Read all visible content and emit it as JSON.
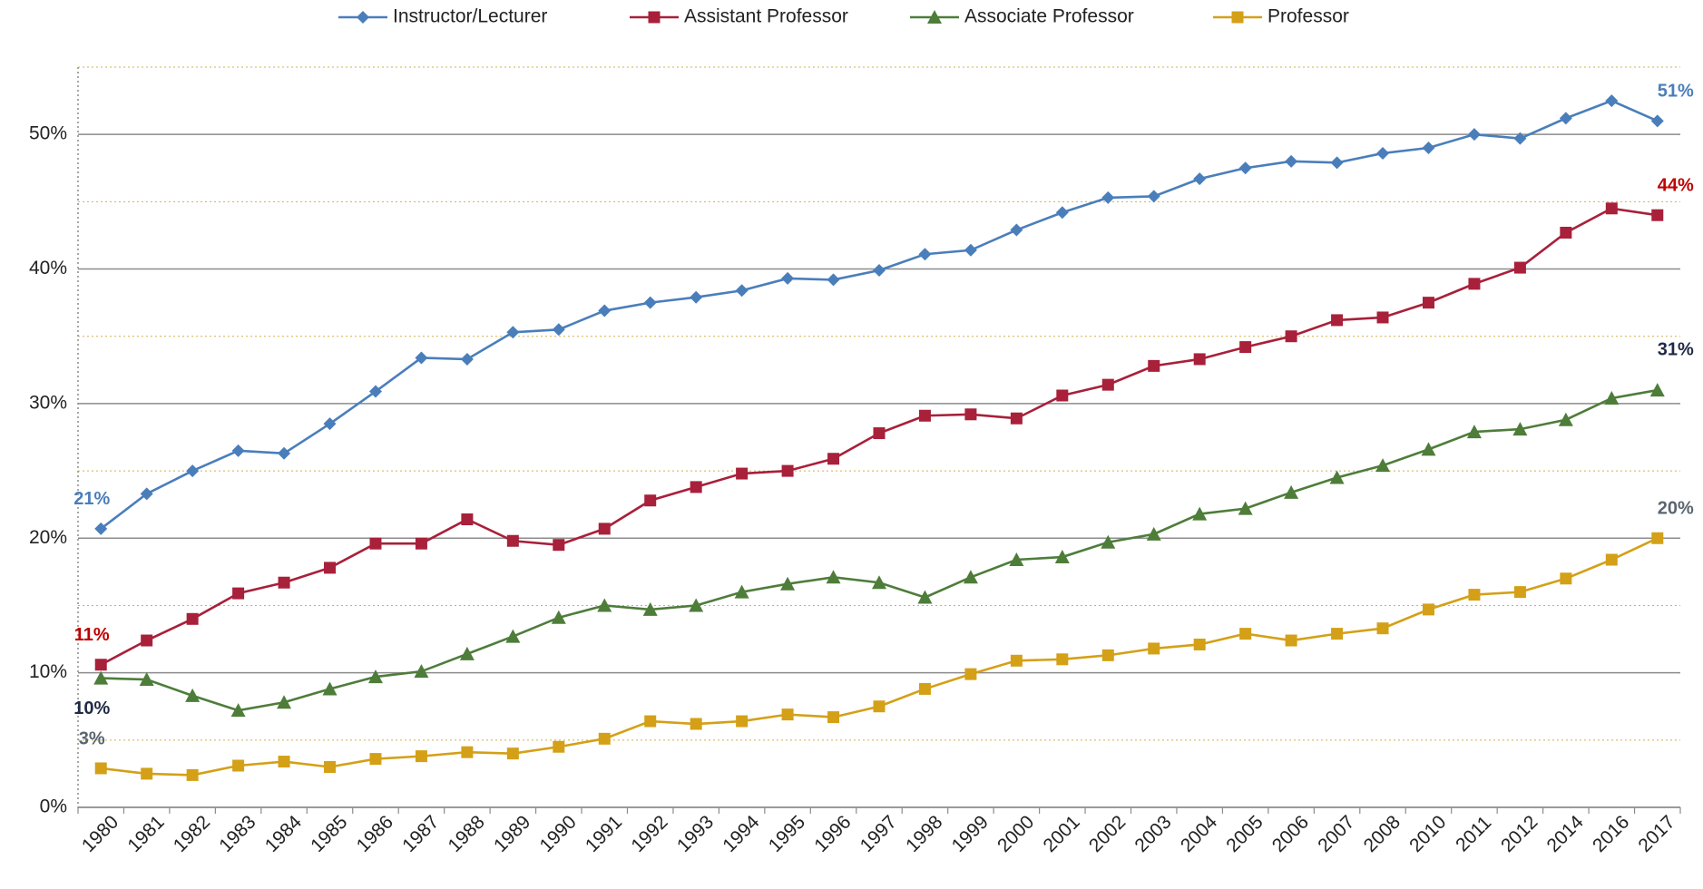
{
  "chart_data": {
    "type": "line",
    "categories": [
      "1980",
      "1981",
      "1982",
      "1983",
      "1984",
      "1985",
      "1986",
      "1987",
      "1988",
      "1989",
      "1990",
      "1991",
      "1992",
      "1993",
      "1994",
      "1995",
      "1996",
      "1997",
      "1998",
      "1999",
      "2000",
      "2001",
      "2002",
      "2003",
      "2004",
      "2005",
      "2006",
      "2007",
      "2008",
      "2010",
      "2011",
      "2012",
      "2014",
      "2016",
      "2017"
    ],
    "series": [
      {
        "name": "Instructor/Lecturer",
        "color": "#4a7ebb",
        "marker": "diamond",
        "label_color": "#4a7ebb",
        "values": [
          20.7,
          23.3,
          25.0,
          26.5,
          26.3,
          28.5,
          30.9,
          33.4,
          33.3,
          35.3,
          35.5,
          36.9,
          37.5,
          37.9,
          38.4,
          39.3,
          39.2,
          39.9,
          41.1,
          41.4,
          42.9,
          44.2,
          45.3,
          45.4,
          46.7,
          47.5,
          48.0,
          47.9,
          48.6,
          49.0,
          50.0,
          49.7,
          51.2,
          52.5,
          51.0
        ],
        "value_labels": [
          "21%",
          null,
          null,
          null,
          null,
          null,
          null,
          null,
          null,
          null,
          null,
          null,
          null,
          null,
          null,
          null,
          null,
          null,
          null,
          null,
          null,
          null,
          null,
          null,
          null,
          null,
          null,
          null,
          null,
          null,
          null,
          null,
          null,
          null,
          "51%"
        ]
      },
      {
        "name": "Assistant Professor",
        "color": "#a8203a",
        "marker": "square",
        "label_color": "#c00000",
        "values": [
          10.6,
          12.4,
          14.0,
          15.9,
          16.7,
          17.8,
          19.6,
          19.6,
          21.4,
          19.8,
          19.5,
          20.7,
          22.8,
          23.8,
          24.8,
          25.0,
          25.9,
          27.8,
          29.1,
          29.2,
          28.9,
          30.6,
          31.4,
          32.8,
          33.3,
          34.2,
          35.0,
          36.2,
          36.4,
          37.5,
          38.9,
          40.1,
          42.7,
          44.5,
          44.0
        ],
        "value_labels": [
          "11%",
          null,
          null,
          null,
          null,
          null,
          null,
          null,
          null,
          null,
          null,
          null,
          null,
          null,
          null,
          null,
          null,
          null,
          null,
          null,
          null,
          null,
          null,
          null,
          null,
          null,
          null,
          null,
          null,
          null,
          null,
          null,
          null,
          null,
          "44%"
        ]
      },
      {
        "name": "Associate Professor",
        "color": "#4e7d3a",
        "marker": "triangle",
        "label_color": "#1f2a44",
        "values": [
          9.6,
          9.5,
          8.3,
          7.2,
          7.8,
          8.8,
          9.7,
          10.1,
          11.4,
          12.7,
          14.1,
          15.0,
          14.7,
          15.0,
          16.0,
          16.6,
          17.1,
          16.7,
          15.6,
          17.1,
          18.4,
          18.6,
          19.7,
          20.3,
          21.8,
          22.2,
          23.4,
          24.5,
          25.4,
          26.6,
          27.9,
          28.1,
          28.8,
          30.4,
          31.0
        ],
        "value_labels": [
          "10%",
          null,
          null,
          null,
          null,
          null,
          null,
          null,
          null,
          null,
          null,
          null,
          null,
          null,
          null,
          null,
          null,
          null,
          null,
          null,
          null,
          null,
          null,
          null,
          null,
          null,
          null,
          null,
          null,
          null,
          null,
          null,
          null,
          null,
          "31%"
        ]
      },
      {
        "name": "Professor",
        "color": "#d4a017",
        "marker": "square",
        "label_color": "#5a6670",
        "values": [
          2.9,
          2.5,
          2.4,
          3.1,
          3.4,
          3.0,
          3.6,
          3.8,
          4.1,
          4.0,
          4.5,
          5.1,
          6.4,
          6.2,
          6.4,
          6.9,
          6.7,
          7.5,
          8.8,
          9.9,
          10.9,
          11.0,
          11.3,
          11.8,
          12.1,
          12.9,
          12.4,
          12.9,
          13.3,
          14.7,
          15.8,
          16.0,
          17.0,
          18.4,
          20.0
        ],
        "value_labels": [
          "3%",
          null,
          null,
          null,
          null,
          null,
          null,
          null,
          null,
          null,
          null,
          null,
          null,
          null,
          null,
          null,
          null,
          null,
          null,
          null,
          null,
          null,
          null,
          null,
          null,
          null,
          null,
          null,
          null,
          null,
          null,
          null,
          null,
          null,
          "20%"
        ]
      }
    ],
    "ylim": [
      0,
      55
    ],
    "yticks": [
      {
        "value": 0,
        "label": "0%"
      },
      {
        "value": 10,
        "label": "10%"
      },
      {
        "value": 20,
        "label": "20%"
      },
      {
        "value": 30,
        "label": "30%"
      },
      {
        "value": 40,
        "label": "40%"
      },
      {
        "value": 50,
        "label": "50%"
      }
    ],
    "minor_yticks": [
      5,
      15,
      25,
      35,
      45,
      55
    ],
    "grid": true,
    "legend": "top"
  }
}
